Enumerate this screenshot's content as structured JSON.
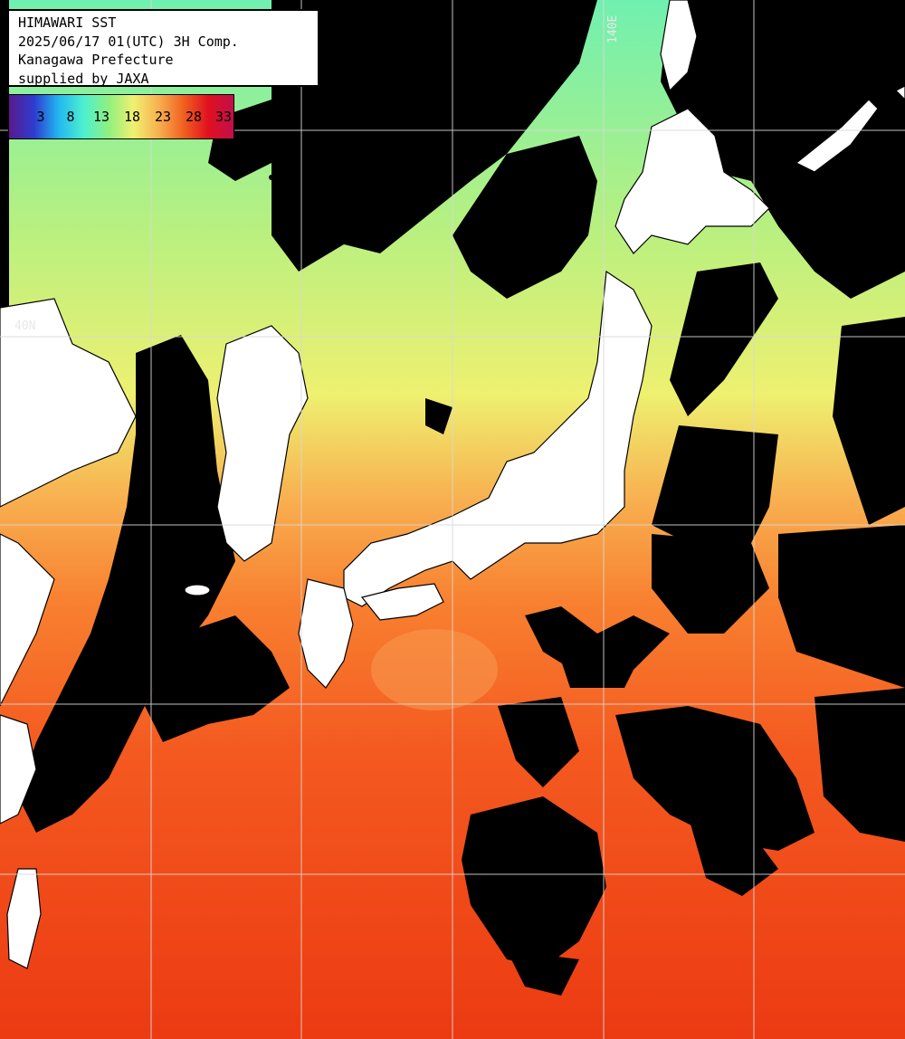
{
  "header": {
    "title": "HIMAWARI SST",
    "datetime": "2025/06/17 01(UTC) 3H Comp.",
    "region": "Kanagawa Prefecture",
    "credit": "supplied by JAXA"
  },
  "colorbar": {
    "ticks": [
      "3",
      "8",
      "13",
      "18",
      "23",
      "28",
      "33"
    ],
    "colors": [
      "#5a1a8c",
      "#2d3cd0",
      "#22b8f0",
      "#4df0d0",
      "#90f080",
      "#f0f070",
      "#f8b050",
      "#f06020",
      "#e01020",
      "#c0104a"
    ]
  },
  "grid": {
    "lon_label": "140E",
    "lat_label": "40N"
  },
  "palette": {
    "land": "#ffffff",
    "cloud": "#000000",
    "cold_water": "#70f0a0",
    "mid_water": "#e8f070",
    "warm_water": "#f88030",
    "hot_water": "#f03a10"
  }
}
